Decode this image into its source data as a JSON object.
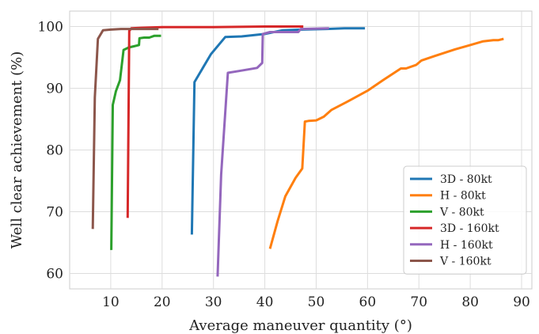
{
  "chart_data": {
    "type": "line",
    "xlabel": "Average maneuver quantity (°)",
    "ylabel": "Well clear achievement (%)",
    "xlim": [
      2,
      92
    ],
    "ylim": [
      57.5,
      102.5
    ],
    "xticks": [
      "10",
      "20",
      "30",
      "40",
      "50",
      "60",
      "70",
      "80",
      "90"
    ],
    "yticks": [
      "60",
      "70",
      "80",
      "90",
      "100"
    ],
    "grid": true,
    "legend_position": "bottom-right",
    "series": [
      {
        "name": "3D - 80kt",
        "color": "#1f77b4",
        "x": [
          25.8,
          26.3,
          29.5,
          32.3,
          35.5,
          40,
          43.5,
          47,
          52,
          55.5,
          59.5
        ],
        "y": [
          66.3,
          91,
          95.5,
          98.3,
          98.4,
          98.8,
          99.4,
          99.5,
          99.6,
          99.7,
          99.7
        ]
      },
      {
        "name": "H - 80kt",
        "color": "#ff7f0e",
        "x": [
          41,
          42.5,
          44,
          46,
          47.3,
          47.8,
          48.5,
          50,
          51.5,
          53,
          56,
          60,
          63,
          66.5,
          67.5,
          69.5,
          70.5,
          73,
          77,
          80,
          82.5,
          84.5,
          85.5,
          86.5
        ],
        "y": [
          64,
          68.5,
          72.5,
          75.5,
          77,
          84.6,
          84.7,
          84.8,
          85.4,
          86.5,
          87.8,
          89.6,
          91.3,
          93.2,
          93.2,
          93.8,
          94.5,
          95.2,
          96.3,
          97,
          97.6,
          97.8,
          97.8,
          98
        ]
      },
      {
        "name": "V - 80kt",
        "color": "#2ca02c",
        "x": [
          10.1,
          10.4,
          11,
          11.8,
          12.5,
          13.5,
          14.5,
          15.5,
          15.6,
          16.5,
          17.5,
          18.5,
          19.8
        ],
        "y": [
          63.8,
          87.3,
          89.5,
          91.3,
          96.2,
          96.6,
          96.8,
          97,
          98.1,
          98.2,
          98.2,
          98.5,
          98.5
        ]
      },
      {
        "name": "3D - 160kt",
        "color": "#d62728",
        "x": [
          13.3,
          13.6,
          14,
          16,
          20,
          30,
          40,
          47.5
        ],
        "y": [
          69,
          99.3,
          99.7,
          99.8,
          99.9,
          99.9,
          100,
          100
        ]
      },
      {
        "name": "H - 160kt",
        "color": "#9467bd",
        "x": [
          30.8,
          31.5,
          32.8,
          35,
          38.5,
          39.5,
          39.6,
          41,
          46.5,
          47,
          52.5
        ],
        "y": [
          59.5,
          76,
          92.5,
          92.8,
          93.3,
          94.1,
          98.8,
          99.1,
          99.1,
          99.6,
          99.7
        ]
      },
      {
        "name": "V - 160kt",
        "color": "#8c564b",
        "x": [
          6.5,
          6.9,
          7.5,
          8.5,
          10,
          12,
          15,
          19.3
        ],
        "y": [
          67.2,
          88.5,
          98,
          99.4,
          99.5,
          99.6,
          99.6,
          99.6
        ]
      }
    ]
  }
}
